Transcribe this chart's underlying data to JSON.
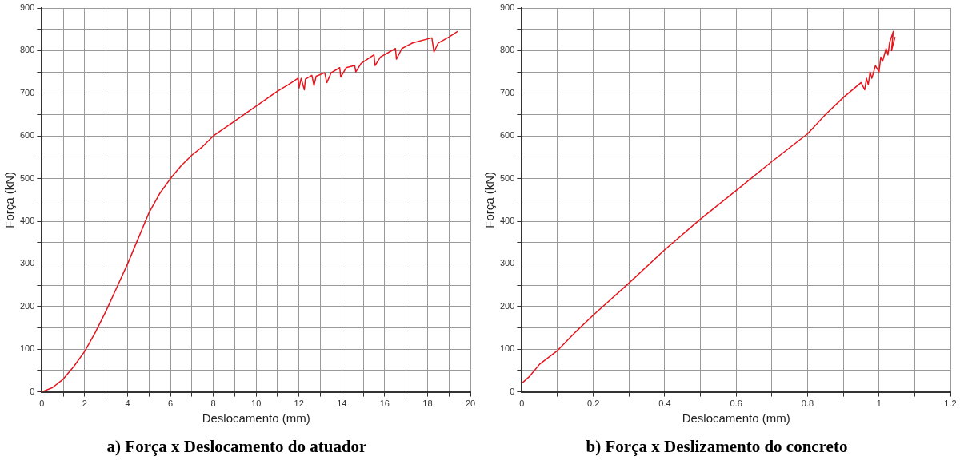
{
  "chart_data": [
    {
      "type": "line",
      "title": "a) Força x Deslocamento do atuador",
      "xlabel": "Deslocamento (mm)",
      "ylabel": "Força (kN)",
      "x": [
        0,
        0.5,
        1,
        1.5,
        2,
        2.5,
        3,
        3.5,
        4,
        4.5,
        5,
        5.5,
        6,
        6.5,
        7,
        7.5,
        8,
        9,
        10,
        11,
        11.5,
        11.95,
        12.0,
        12.1,
        12.25,
        12.3,
        12.6,
        12.7,
        12.8,
        13.2,
        13.3,
        13.5,
        13.9,
        13.95,
        14.2,
        14.6,
        14.65,
        14.9,
        15.5,
        15.55,
        15.8,
        16.5,
        16.55,
        16.8,
        17.3,
        18.2,
        18.3,
        18.5,
        19.0,
        19.4
      ],
      "series": [
        {
          "color": "#e8141c",
          "values": [
            0,
            10,
            30,
            60,
            95,
            140,
            190,
            245,
            300,
            360,
            420,
            465,
            500,
            530,
            555,
            575,
            600,
            635,
            670,
            705,
            720,
            735,
            712,
            735,
            708,
            733,
            742,
            718,
            740,
            748,
            725,
            748,
            760,
            738,
            760,
            765,
            750,
            770,
            790,
            765,
            785,
            805,
            780,
            805,
            818,
            830,
            797,
            818,
            832,
            845
          ]
        }
      ],
      "xlim": [
        0,
        20
      ],
      "ylim": [
        0,
        900
      ],
      "xticks": [
        0,
        {
          "value": 1,
          "label": null
        },
        2,
        {
          "value": 3,
          "label": null
        },
        4,
        {
          "value": 5,
          "label": null
        },
        6,
        {
          "value": 7,
          "label": null
        },
        8,
        {
          "value": 9,
          "label": null
        },
        10,
        {
          "value": 11,
          "label": null
        },
        12,
        {
          "value": 13,
          "label": null
        },
        14,
        {
          "value": 15,
          "label": null
        },
        16,
        {
          "value": 17,
          "label": null
        },
        18,
        {
          "value": 19,
          "label": null
        },
        20
      ],
      "yticks": [
        0,
        {
          "value": 50,
          "label": null
        },
        100,
        {
          "value": 150,
          "label": null
        },
        200,
        {
          "value": 250,
          "label": null
        },
        300,
        {
          "value": 350,
          "label": null
        },
        400,
        {
          "value": 450,
          "label": null
        },
        500,
        {
          "value": 550,
          "label": null
        },
        600,
        {
          "value": 650,
          "label": null
        },
        700,
        {
          "value": 750,
          "label": null
        },
        800,
        {
          "value": 850,
          "label": null
        },
        900
      ],
      "grid": true
    },
    {
      "type": "line",
      "title": "b) Força x Deslizamento do concreto",
      "xlabel": "Deslocamento (mm)",
      "ylabel": "Força (kN)",
      "x": [
        0,
        0.02,
        0.05,
        0.1,
        0.15,
        0.2,
        0.3,
        0.4,
        0.5,
        0.6,
        0.7,
        0.8,
        0.85,
        0.9,
        0.95,
        0.96,
        0.965,
        0.97,
        0.975,
        0.98,
        0.99,
        1.0,
        1.005,
        1.01,
        1.02,
        1.025,
        1.03,
        1.04,
        1.035,
        1.045
      ],
      "series": [
        {
          "color": "#e8141c",
          "values": [
            20,
            35,
            65,
            97,
            140,
            180,
            255,
            333,
            405,
            472,
            540,
            605,
            650,
            690,
            725,
            708,
            735,
            720,
            750,
            735,
            765,
            750,
            785,
            775,
            805,
            790,
            820,
            845,
            800,
            832
          ]
        }
      ],
      "xlim": [
        0,
        1.2
      ],
      "ylim": [
        0,
        900
      ],
      "xticks": [
        0,
        {
          "value": 0.1,
          "label": null
        },
        0.2,
        {
          "value": 0.3,
          "label": null
        },
        0.4,
        {
          "value": 0.5,
          "label": null
        },
        0.6,
        {
          "value": 0.7,
          "label": null
        },
        0.8,
        {
          "value": 0.9,
          "label": null
        },
        1,
        {
          "value": 1.1,
          "label": null
        },
        1.2
      ],
      "yticks": [
        0,
        {
          "value": 50,
          "label": null
        },
        100,
        {
          "value": 150,
          "label": null
        },
        200,
        {
          "value": 250,
          "label": null
        },
        300,
        {
          "value": 350,
          "label": null
        },
        400,
        {
          "value": 450,
          "label": null
        },
        500,
        {
          "value": 550,
          "label": null
        },
        600,
        {
          "value": 650,
          "label": null
        },
        700,
        {
          "value": 750,
          "label": null
        },
        800,
        {
          "value": 850,
          "label": null
        },
        900
      ],
      "grid": true
    }
  ]
}
